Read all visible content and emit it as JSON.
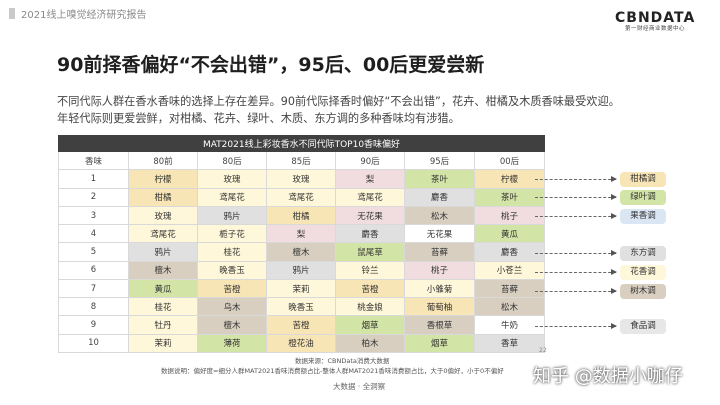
{
  "header": {
    "title": "2021线上嗅觉经济研究报告"
  },
  "logo": {
    "main": "CBNDATA",
    "sub": "第一财经商业数据中心"
  },
  "title": "90前择香偏好“不会出错”，95后、00后更爱尝新",
  "description": [
    "不同代际人群在香水香味的选择上存在差异。90前代际择香时偏好“不会出错”，花卉、柑橘及木质香味最受欢迎。",
    "年轻代际则更爱尝鲜，对柑橘、花卉、绿叶、木质、东方调的多种香味均有涉猎。"
  ],
  "table": {
    "caption": "MAT2021线上彩妆香水不同代际TOP10香味偏好",
    "columns": [
      "香味",
      "80前",
      "80后",
      "85后",
      "90后",
      "95后",
      "00后"
    ],
    "rows": [
      {
        "rank": "1",
        "cells": [
          [
            "柠檬",
            "cit"
          ],
          [
            "玫瑰",
            "fl"
          ],
          [
            "玫瑰",
            "fl"
          ],
          [
            "梨",
            "frt"
          ],
          [
            "茶叶",
            "grn"
          ],
          [
            "柠檬",
            "cit"
          ]
        ]
      },
      {
        "rank": "2",
        "cells": [
          [
            "柑橘",
            "cit"
          ],
          [
            "鸢尾花",
            "fl"
          ],
          [
            "鸢尾花",
            "fl"
          ],
          [
            "鸢尾花",
            "fl"
          ],
          [
            "麝香",
            "east"
          ],
          [
            "茶叶",
            "grn"
          ]
        ]
      },
      {
        "rank": "3",
        "cells": [
          [
            "玫瑰",
            "fl"
          ],
          [
            "鸦片",
            "east"
          ],
          [
            "柑橘",
            "cit"
          ],
          [
            "无花果",
            "frt"
          ],
          [
            "松木",
            "wood"
          ],
          [
            "桃子",
            "frt"
          ]
        ]
      },
      {
        "rank": "4",
        "cells": [
          [
            "鸢尾花",
            "fl"
          ],
          [
            "栀子花",
            "fl"
          ],
          [
            "梨",
            "frt"
          ],
          [
            "麝香",
            "east"
          ],
          [
            "无花果",
            "non"
          ],
          [
            "黄瓜",
            "grn"
          ]
        ]
      },
      {
        "rank": "5",
        "cells": [
          [
            "鸦片",
            "east"
          ],
          [
            "桂花",
            "fl"
          ],
          [
            "檀木",
            "wood"
          ],
          [
            "鼠尾草",
            "grn"
          ],
          [
            "苔藓",
            "wood"
          ],
          [
            "麝香",
            "east"
          ]
        ]
      },
      {
        "rank": "6",
        "cells": [
          [
            "檀木",
            "wood"
          ],
          [
            "晚香玉",
            "fl"
          ],
          [
            "鸦片",
            "east"
          ],
          [
            "铃兰",
            "fl"
          ],
          [
            "桃子",
            "frt"
          ],
          [
            "小苍兰",
            "fl"
          ]
        ]
      },
      {
        "rank": "7",
        "cells": [
          [
            "黄瓜",
            "grn"
          ],
          [
            "苦橙",
            "cit"
          ],
          [
            "茉莉",
            "fl"
          ],
          [
            "苦橙",
            "cit"
          ],
          [
            "小雏菊",
            "fl"
          ],
          [
            "苔藓",
            "wood"
          ]
        ]
      },
      {
        "rank": "8",
        "cells": [
          [
            "桂花",
            "fl"
          ],
          [
            "乌木",
            "wood"
          ],
          [
            "晚香玉",
            "fl"
          ],
          [
            "桃金娘",
            "fl"
          ],
          [
            "葡萄柚",
            "cit"
          ],
          [
            "松木",
            "wood"
          ]
        ]
      },
      {
        "rank": "9",
        "cells": [
          [
            "牡丹",
            "fl"
          ],
          [
            "檀木",
            "wood"
          ],
          [
            "苦橙",
            "cit"
          ],
          [
            "烟草",
            "grn"
          ],
          [
            "香根草",
            "wood"
          ],
          [
            "牛奶",
            "non"
          ]
        ]
      },
      {
        "rank": "10",
        "cells": [
          [
            "茉莉",
            "fl"
          ],
          [
            "薄荷",
            "grn"
          ],
          [
            "橙花油",
            "cit"
          ],
          [
            "柏木",
            "wood"
          ],
          [
            "烟草",
            "grn"
          ],
          [
            "香草",
            "east"
          ]
        ]
      }
    ]
  },
  "legend": [
    {
      "label": "柑橘调",
      "color": "#f8e5b5"
    },
    {
      "label": "绿叶调",
      "color": "#d3e4a7"
    },
    {
      "label": "果香调",
      "color": "#dbe6f5"
    },
    {
      "label": "东方调",
      "color": "#e0e0e0"
    },
    {
      "label": "花香调",
      "color": "#fff7d9"
    },
    {
      "label": "树木调",
      "color": "#d8cfc0"
    },
    {
      "label": "食品调",
      "color": "#e7e7e7"
    }
  ],
  "source": "数据来源：CBNData消费大数据",
  "note": "数据说明：偏好度=细分人群MAT2021香味消费额占比-整体人群MAT2021香味消费额占比，大于0偏好，小于0不偏好",
  "page_number": "22",
  "footer": "大数据 · 全洞察",
  "watermark": "知乎 @数据小咖仔"
}
